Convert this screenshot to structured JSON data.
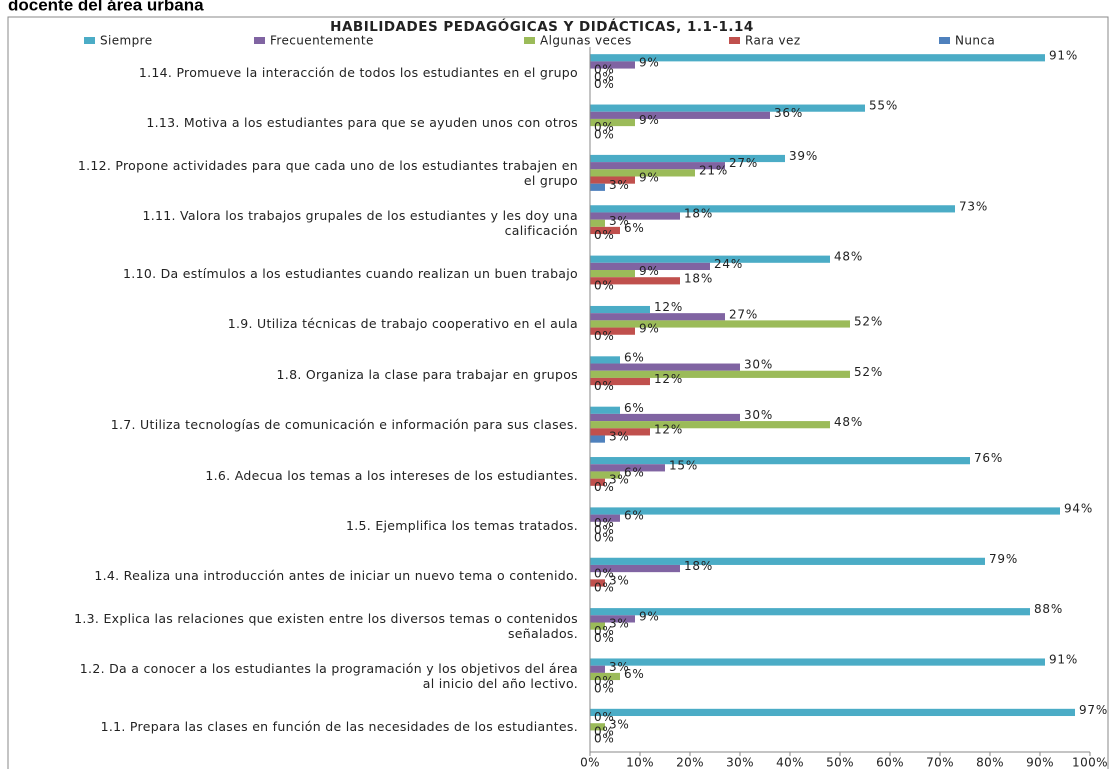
{
  "heading": "docente del área urbana",
  "chart_data": {
    "type": "bar",
    "orientation": "horizontal",
    "title": "HABILIDADES PEDAGÓGICAS Y DIDÁCTICAS, 1.1-1.14",
    "categories": [
      "1.14.  Promueve la interacción de todos los estudiantes en el grupo",
      "1.13.  Motiva  a los estudiantes para que se ayuden unos     con otros",
      "1.12.  Propone actividades para  que cada uno de los estudiantes trabajen en el grupo",
      "1.11.  Valora los trabajos grupales de los estudiantes y les doy una calificación",
      "1.10.  Da estímulos a los estudiantes cuando realizan un buen trabajo",
      "1.9.  Utiliza técnicas de trabajo cooperativo en el aula",
      "1.8.  Organiza la clase para trabajar en grupos",
      "1.7.  Utiliza tecnologías de comunicación e información para sus clases.",
      "1.6.  Adecua los temas a los intereses de los estudiantes.",
      "1.5.  Ejemplifica los temas tratados.",
      "1.4.  Realiza una introducción antes de iniciar un nuevo tema o contenido.",
      "1.3.  Explica las relaciones que existen entre los diversos temas o contenidos señalados.",
      "1.2. Da a conocer a los estudiantes la programación y los objetivos del área al inicio del año lectivo.",
      "1.1.  Prepara las clases en función de las necesidades de los estudiantes."
    ],
    "series": [
      {
        "name": "Siempre",
        "color": "#4bacc6",
        "values": [
          91,
          55,
          39,
          73,
          48,
          12,
          6,
          6,
          76,
          94,
          79,
          88,
          91,
          97
        ],
        "value_labels": [
          "91%",
          "55%",
          "39%",
          "73%",
          "48%",
          "12%",
          "6%",
          "6%",
          "76%",
          "94%",
          "79%",
          "88%",
          "91%",
          "97%"
        ]
      },
      {
        "name": "Frecuentemente",
        "color": "#8064a2",
        "values": [
          9,
          36,
          27,
          18,
          24,
          27,
          30,
          30,
          15,
          6,
          18,
          9,
          3,
          0
        ],
        "value_labels": [
          "9%",
          "36%",
          "27%",
          "18%",
          "24%",
          "27%",
          "30%",
          "30%",
          "15%",
          "6%",
          "18%",
          "9%",
          "3%",
          "0%"
        ]
      },
      {
        "name": "Algunas veces",
        "color": "#9bbb59",
        "values": [
          0,
          9,
          21,
          3,
          9,
          52,
          52,
          48,
          6,
          0,
          0,
          3,
          6,
          3
        ],
        "value_labels": [
          "0%",
          "9%",
          "21%",
          "3%",
          "9%",
          "52%",
          "52%",
          "48%",
          "6%",
          "0%",
          "0%",
          "3%",
          "6%",
          "3%"
        ]
      },
      {
        "name": "Rara vez",
        "color": "#c0504d",
        "values": [
          0,
          0,
          9,
          6,
          18,
          9,
          12,
          12,
          3,
          0,
          3,
          0,
          0,
          0
        ],
        "value_labels": [
          "0%",
          "0%",
          "9%",
          "6%",
          "18%",
          "9%",
          "12%",
          "12%",
          "3%",
          "0%",
          "3%",
          "0%",
          "0%",
          "0%"
        ]
      },
      {
        "name": "Nunca",
        "color": "#4f81bd",
        "values": [
          0,
          0,
          3,
          0,
          0,
          0,
          0,
          3,
          0,
          0,
          0,
          0,
          0,
          0
        ],
        "value_labels": [
          "0%",
          "0%",
          "3%",
          "0%",
          "0%",
          "0%",
          "0%",
          "3%",
          "0%",
          "0%",
          "0%",
          "0%",
          "0%",
          "0%"
        ]
      }
    ],
    "xlim": [
      0,
      100
    ],
    "xticks": [
      {
        "value": 0,
        "label": "0%"
      },
      {
        "value": 10,
        "label": "10%"
      },
      {
        "value": 20,
        "label": "20%"
      },
      {
        "value": 30,
        "label": "30%"
      },
      {
        "value": 40,
        "label": "40%"
      },
      {
        "value": 50,
        "label": "50%"
      },
      {
        "value": 60,
        "label": "60%"
      },
      {
        "value": 70,
        "label": "70%"
      },
      {
        "value": 80,
        "label": "80%"
      },
      {
        "value": 90,
        "label": "90%"
      },
      {
        "value": 100,
        "label": "100%"
      }
    ],
    "grid": false,
    "legend": "top"
  }
}
